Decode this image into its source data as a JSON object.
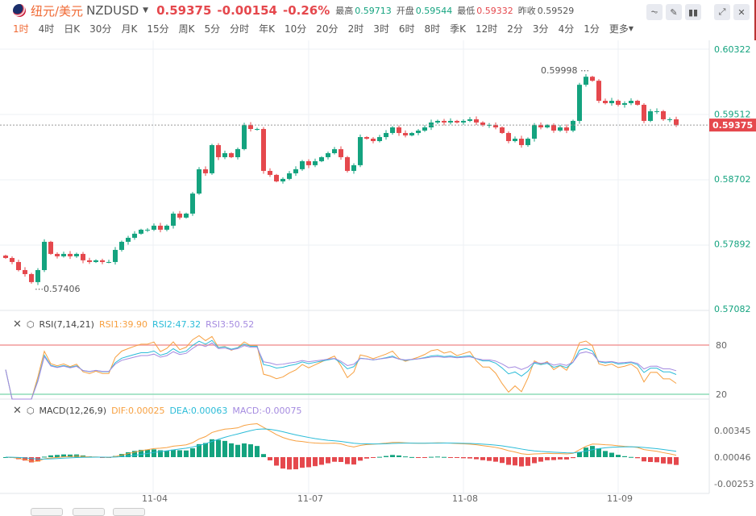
{
  "header": {
    "name": "纽元/美元",
    "symbol": "NZDUSD",
    "price": "0.59375",
    "change": "-0.00154",
    "change_pct": "-0.26%",
    "high_label": "最高",
    "high": "0.59713",
    "open_label": "开盘",
    "open": "0.59544",
    "low_label": "最低",
    "low": "0.59332",
    "prev_label": "昨收",
    "prev": "0.59529"
  },
  "toolbar": [
    "line-tool-icon",
    "pen-icon",
    "candle-type-icon",
    "expand-icon",
    "close-icon"
  ],
  "periods": [
    "1时",
    "4时",
    "日K",
    "30分",
    "月K",
    "15分",
    "周K",
    "5分",
    "分时",
    "年K",
    "10分",
    "20分",
    "2时",
    "3时",
    "6时",
    "8时",
    "季K",
    "12时",
    "2分",
    "3分",
    "4分",
    "1分",
    "更多"
  ],
  "colors": {
    "up": "#14a37f",
    "down": "#e5484d",
    "accent": "#f06a35",
    "rsi1": "#f7a040",
    "rsi2": "#2bbcd8",
    "rsi3": "#a58be0"
  },
  "chart_data": {
    "type": "candlestick",
    "price_axis": [
      "0.60322",
      "0.59512",
      "0.58702",
      "0.57892",
      "0.57082"
    ],
    "ylim": [
      0.57082,
      0.60322
    ],
    "current_price_label": "0.59375",
    "high_annotation": "0.59998",
    "low_annotation": "0.57406",
    "x_labels": [
      "11-04",
      "11-07",
      "11-08",
      "11-09"
    ],
    "closes": [
      0.57716,
      0.57666,
      0.57565,
      0.57515,
      0.57415,
      0.57565,
      0.57918,
      0.57767,
      0.57737,
      0.57767,
      0.57737,
      0.57767,
      0.57687,
      0.57666,
      0.57687,
      0.57666,
      0.57666,
      0.57817,
      0.57918,
      0.57968,
      0.58019,
      0.58069,
      0.58069,
      0.58119,
      0.58069,
      0.58119,
      0.5827,
      0.5822,
      0.5827,
      0.5852,
      0.58823,
      0.58773,
      0.59125,
      0.58974,
      0.59024,
      0.58974,
      0.59075,
      0.59376,
      0.59326,
      0.59326,
      0.58803,
      0.58753,
      0.58672,
      0.58703,
      0.58773,
      0.58824,
      0.58924,
      0.58874,
      0.58924,
      0.58974,
      0.59024,
      0.59074,
      0.58974,
      0.58803,
      0.58874,
      0.59225,
      0.59205,
      0.59175,
      0.59225,
      0.59276,
      0.59346,
      0.59276,
      0.59246,
      0.59276,
      0.59306,
      0.59346,
      0.59407,
      0.59427,
      0.59407,
      0.59427,
      0.59407,
      0.59427,
      0.59447,
      0.59407,
      0.59376,
      0.59376,
      0.59346,
      0.59276,
      0.59175,
      0.59205,
      0.59125,
      0.59205,
      0.59376,
      0.59346,
      0.59376,
      0.59306,
      0.59346,
      0.59306,
      0.59427,
      0.59878,
      0.59978,
      0.59928,
      0.59678,
      0.59648,
      0.59678,
      0.59628,
      0.59648,
      0.59678,
      0.59628,
      0.59427,
      0.59547,
      0.59548,
      0.59447,
      0.59447,
      0.59375
    ]
  },
  "rsi": {
    "title": "RSI(7,14,21)",
    "rsi1": "RSI1:39.90",
    "rsi2": "RSI2:47.32",
    "rsi3": "RSI3:50.52",
    "levels": [
      "80",
      "20"
    ]
  },
  "macd": {
    "title": "MACD(12,26,9)",
    "dif": "DIF:0.00025",
    "dea": "DEA:0.00063",
    "macd": "MACD:-0.00075",
    "axis": [
      "0.00345",
      "0.00046",
      "-0.00253"
    ]
  }
}
